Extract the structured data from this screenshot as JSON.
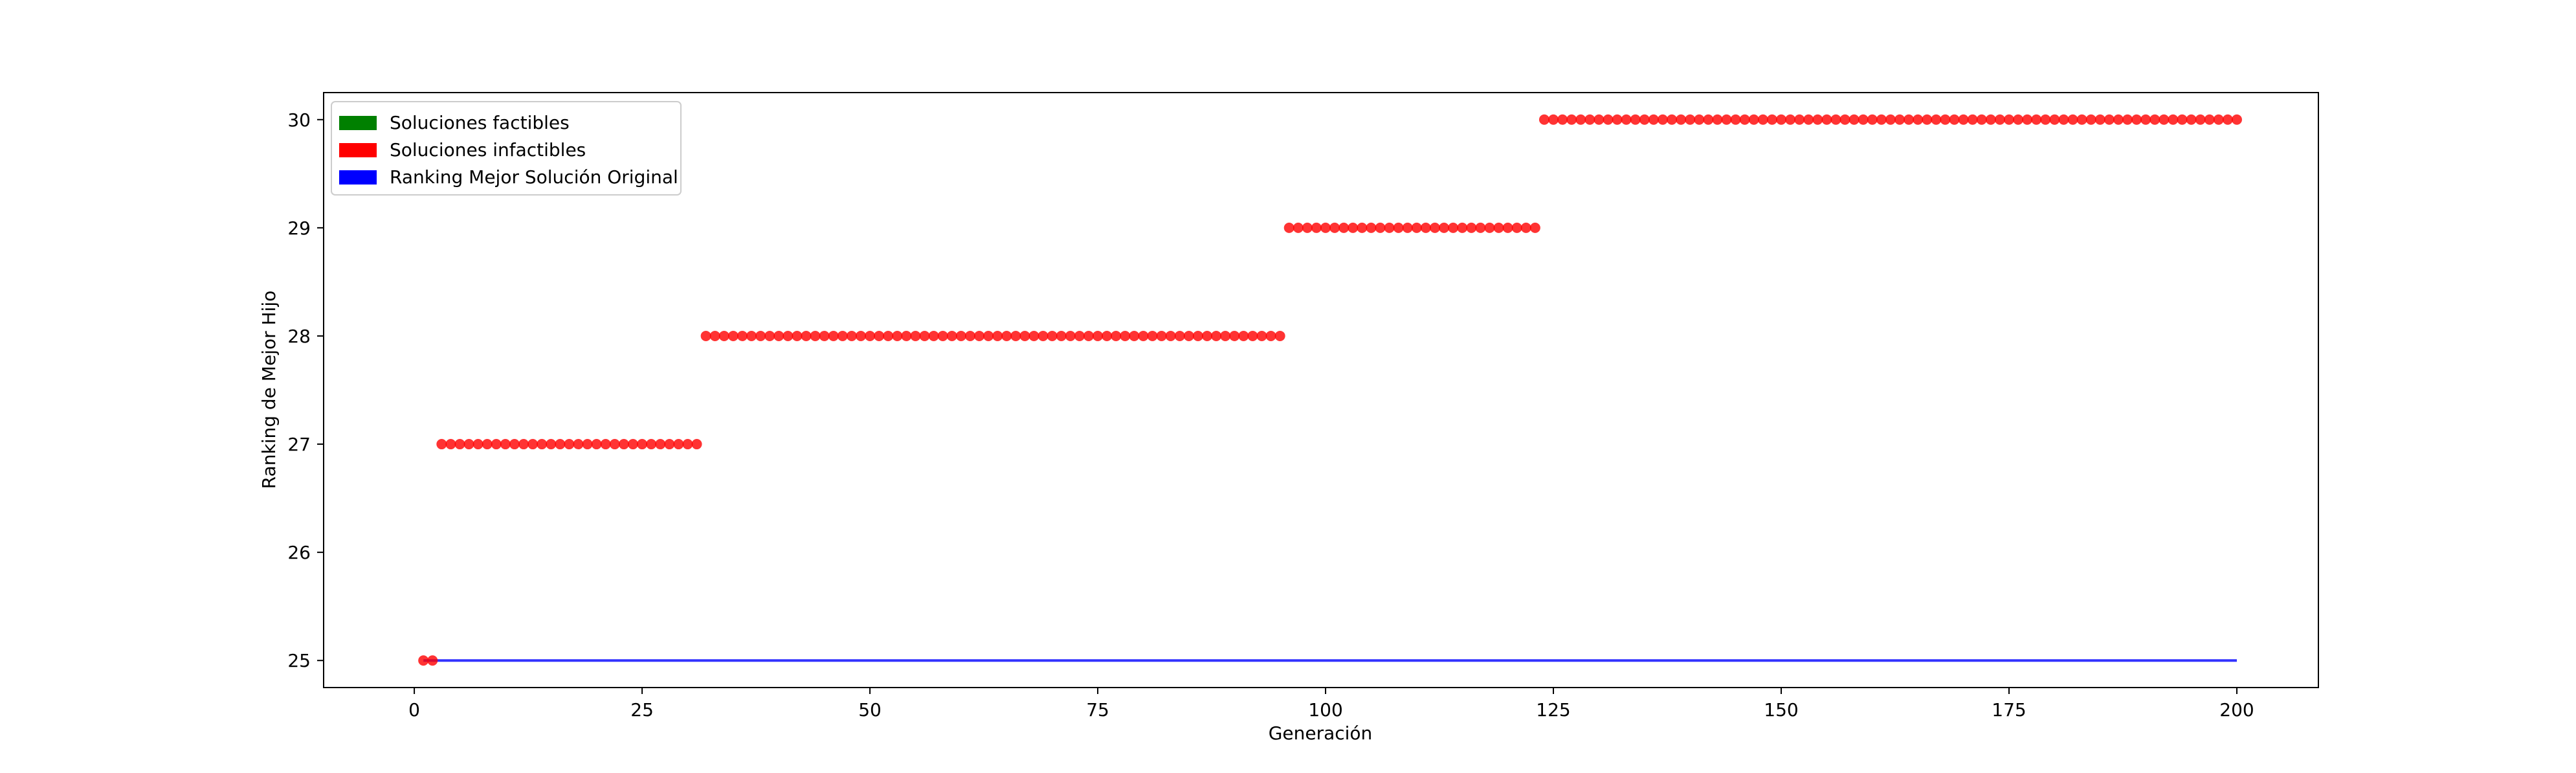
{
  "chart_data": {
    "type": "scatter",
    "xlabel": "Generación",
    "ylabel": "Ranking de Mejor Hijo",
    "xlim": [
      -9.95,
      208.95
    ],
    "ylim": [
      24.75,
      30.25
    ],
    "xticks": [
      0,
      25,
      50,
      75,
      100,
      125,
      150,
      175,
      200
    ],
    "yticks": [
      25,
      26,
      27,
      28,
      29,
      30
    ],
    "grid": false,
    "legend_position": "top-left",
    "legend": [
      {
        "label": "Soluciones factibles",
        "color": "#008000"
      },
      {
        "label": "Soluciones infactibles",
        "color": "#ff0000"
      },
      {
        "label": "Ranking Mejor Solución Original",
        "color": "#0000ff"
      }
    ],
    "series": [
      {
        "name": "Soluciones infactibles",
        "color": "#ff0000",
        "type": "scatter",
        "segments": [
          {
            "x_from": 1,
            "x_to": 2,
            "y": 25
          },
          {
            "x_from": 3,
            "x_to": 31,
            "y": 27
          },
          {
            "x_from": 32,
            "x_to": 95,
            "y": 28
          },
          {
            "x_from": 96,
            "x_to": 123,
            "y": 29
          },
          {
            "x_from": 124,
            "x_to": 200,
            "y": 30
          }
        ]
      },
      {
        "name": "Ranking Mejor Solución Original",
        "color": "#0000ff",
        "type": "line",
        "x": [
          1,
          200
        ],
        "y": [
          25,
          25
        ]
      }
    ]
  }
}
